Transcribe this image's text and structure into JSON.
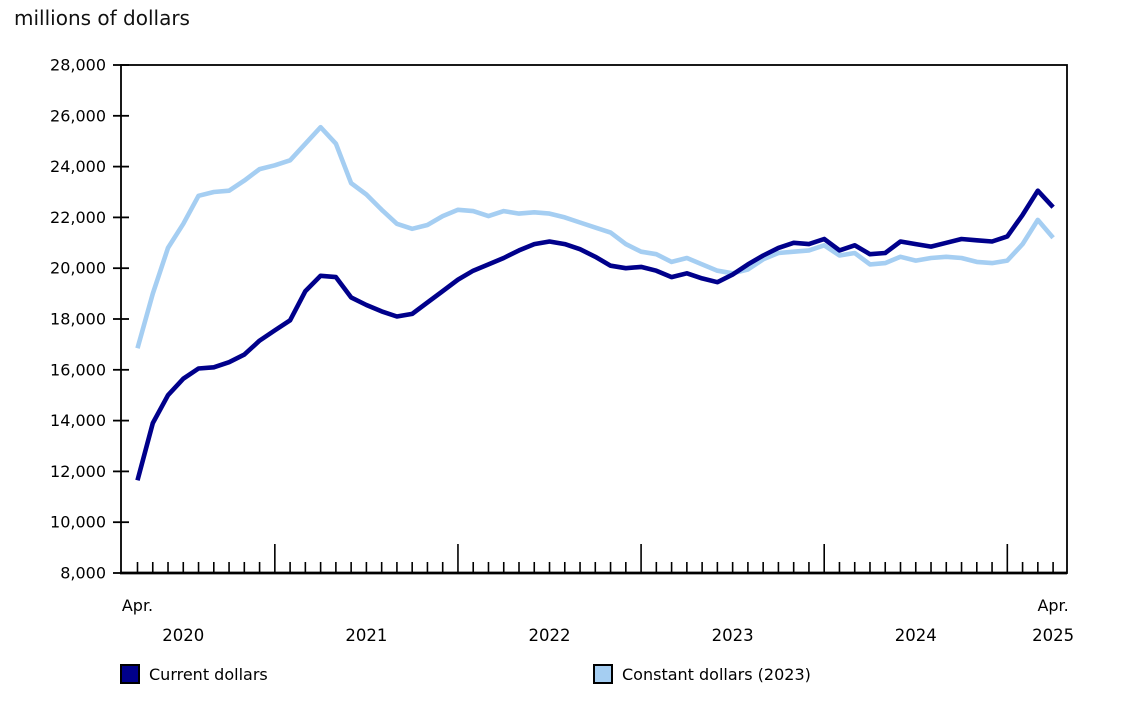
{
  "title": "millions of dollars",
  "legend": [
    {
      "label": "Current dollars",
      "color": "#00008B"
    },
    {
      "label": "Constant dollars (2023)",
      "color": "#A5CEF2"
    }
  ],
  "axis": {
    "y_tick_labels": [
      "28,000",
      "26,000",
      "24,000",
      "22,000",
      "20,000",
      "18,000",
      "16,000",
      "14,000",
      "12,000",
      "10,000",
      "8,000"
    ],
    "x_year_labels": [
      "2020",
      "2021",
      "2022",
      "2023",
      "2024",
      "2025"
    ],
    "x_start_month_label": "Apr.",
    "x_end_month_label": "Apr."
  },
  "chart_data": {
    "type": "line",
    "title": "millions of dollars",
    "ylabel": "millions of dollars",
    "xlabel": "",
    "ylim": [
      8000,
      28000
    ],
    "y_tick_step": 2000,
    "grid": false,
    "legend_position": "bottom",
    "x": [
      "Apr 2020",
      "May 2020",
      "Jun 2020",
      "Jul 2020",
      "Aug 2020",
      "Sep 2020",
      "Oct 2020",
      "Nov 2020",
      "Dec 2020",
      "Jan 2021",
      "Feb 2021",
      "Mar 2021",
      "Apr 2021",
      "May 2021",
      "Jun 2021",
      "Jul 2021",
      "Aug 2021",
      "Sep 2021",
      "Oct 2021",
      "Nov 2021",
      "Dec 2021",
      "Jan 2022",
      "Feb 2022",
      "Mar 2022",
      "Apr 2022",
      "May 2022",
      "Jun 2022",
      "Jul 2022",
      "Aug 2022",
      "Sep 2022",
      "Oct 2022",
      "Nov 2022",
      "Dec 2022",
      "Jan 2023",
      "Feb 2023",
      "Mar 2023",
      "Apr 2023",
      "May 2023",
      "Jun 2023",
      "Jul 2023",
      "Aug 2023",
      "Sep 2023",
      "Oct 2023",
      "Nov 2023",
      "Dec 2023",
      "Jan 2024",
      "Feb 2024",
      "Mar 2024",
      "Apr 2024",
      "May 2024",
      "Jun 2024",
      "Jul 2024",
      "Aug 2024",
      "Sep 2024",
      "Oct 2024",
      "Nov 2024",
      "Dec 2024",
      "Jan 2025",
      "Feb 2025",
      "Mar 2025",
      "Apr 2025"
    ],
    "series": [
      {
        "name": "Current dollars",
        "color": "#00008B",
        "values": [
          11650,
          13900,
          15000,
          15650,
          16050,
          16100,
          16300,
          16600,
          17150,
          17550,
          17950,
          19100,
          19700,
          19650,
          18850,
          18550,
          18300,
          18100,
          18200,
          18650,
          19100,
          19550,
          19900,
          20150,
          20400,
          20700,
          20950,
          21050,
          20950,
          20750,
          20450,
          20100,
          20000,
          20050,
          19900,
          19650,
          19800,
          19600,
          19450,
          19750,
          20150,
          20500,
          20800,
          21000,
          20950,
          21150,
          20700,
          20900,
          20550,
          20600,
          21050,
          20950,
          20850,
          21000,
          21150,
          21100,
          21050,
          21250,
          22100,
          23050,
          22400
        ]
      },
      {
        "name": "Constant dollars (2023)",
        "color": "#A5CEF2",
        "values": [
          16850,
          19000,
          20800,
          21750,
          22850,
          23000,
          23050,
          23450,
          23900,
          24050,
          24250,
          24900,
          25550,
          24900,
          23350,
          22900,
          22300,
          21750,
          21550,
          21700,
          22050,
          22300,
          22250,
          22050,
          22250,
          22150,
          22200,
          22150,
          22000,
          21800,
          21600,
          21400,
          20950,
          20650,
          20550,
          20250,
          20400,
          20150,
          19900,
          19800,
          19950,
          20350,
          20600,
          20650,
          20700,
          20900,
          20500,
          20600,
          20150,
          20200,
          20450,
          20300,
          20400,
          20450,
          20400,
          20250,
          20200,
          20300,
          20950,
          21900,
          21200
        ]
      }
    ]
  }
}
